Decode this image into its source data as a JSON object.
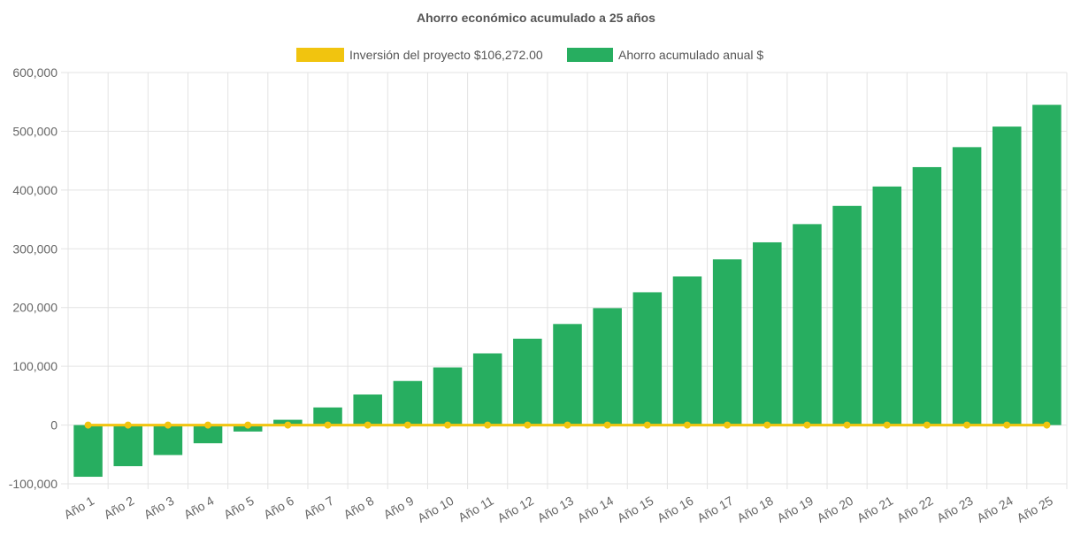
{
  "chart_data": {
    "type": "bar",
    "title": "Ahorro económico acumulado a 25 años",
    "xlabel": "",
    "ylabel": "",
    "ylim": [
      -100000,
      600000
    ],
    "yticks": [
      "600,000",
      "500,000",
      "400,000",
      "300,000",
      "200,000",
      "100,000",
      "0",
      "-100,000"
    ],
    "ytick_values": [
      600000,
      500000,
      400000,
      300000,
      200000,
      100000,
      0,
      -100000
    ],
    "grid": true,
    "legend_position": "top-center",
    "categories": [
      "Año 1",
      "Año 2",
      "Año 3",
      "Año 4",
      "Año 5",
      "Año 6",
      "Año 7",
      "Año 8",
      "Año 9",
      "Año 10",
      "Año 11",
      "Año 12",
      "Año 13",
      "Año 14",
      "Año 15",
      "Año 16",
      "Año 17",
      "Año 18",
      "Año 19",
      "Año 20",
      "Año 21",
      "Año 22",
      "Año 23",
      "Año 24",
      "Año 25"
    ],
    "series": [
      {
        "name": "Inversión del proyecto $106,272.00",
        "type": "line",
        "color": "#f1c40f",
        "values": [
          0,
          0,
          0,
          0,
          0,
          0,
          0,
          0,
          0,
          0,
          0,
          0,
          0,
          0,
          0,
          0,
          0,
          0,
          0,
          0,
          0,
          0,
          0,
          0,
          0
        ]
      },
      {
        "name": "Ahorro acumulado anual $",
        "type": "bar",
        "color": "#27ae60",
        "values": [
          -88000,
          -70000,
          -51000,
          -31000,
          -11000,
          9000,
          30000,
          52000,
          75000,
          98000,
          122000,
          147000,
          172000,
          199000,
          226000,
          253000,
          282000,
          311000,
          342000,
          373000,
          406000,
          439000,
          473000,
          508000,
          545000
        ]
      }
    ]
  }
}
